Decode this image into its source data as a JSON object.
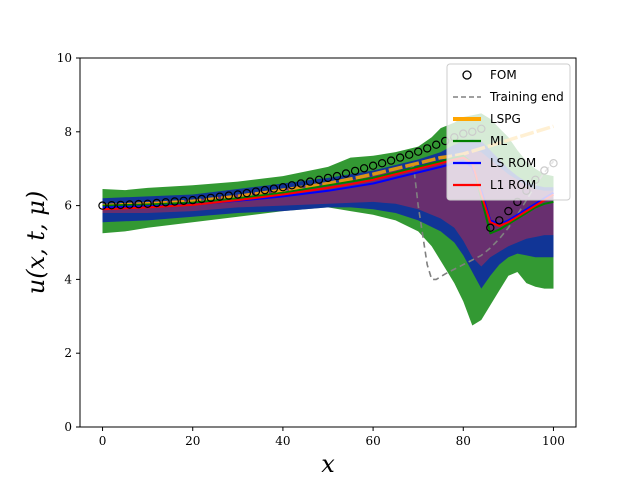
{
  "chart_data": {
    "type": "line",
    "xlabel": "x",
    "ylabel": "u(x, t, μ)",
    "xlim": [
      -5,
      105
    ],
    "ylim": [
      0,
      10
    ],
    "xticks": [
      "0",
      "20",
      "40",
      "60",
      "80",
      "100"
    ],
    "yticks": [
      "0",
      "2",
      "4",
      "6",
      "8",
      "10"
    ],
    "grid": false,
    "legend": {
      "placement": "top-right",
      "entries": [
        {
          "name": "FOM",
          "style": "marker-circle",
          "color": "#000000"
        },
        {
          "name": "Training end",
          "style": "dashed",
          "color": "#808080"
        },
        {
          "name": "LSPG",
          "style": "thick-line",
          "color": "#ffa500"
        },
        {
          "name": "ML",
          "style": "line",
          "color": "#007f00"
        },
        {
          "name": "LS ROM",
          "style": "line",
          "color": "#0000ff"
        },
        {
          "name": "L1 ROM",
          "style": "line",
          "color": "#ff0000"
        }
      ]
    },
    "bands": [
      {
        "series": "ML",
        "color": "#008000",
        "opacity": 0.8,
        "x": [
          0,
          5,
          10,
          20,
          30,
          40,
          50,
          55,
          60,
          65,
          70,
          73,
          75,
          78,
          80,
          82,
          84,
          86,
          88,
          90,
          92,
          94,
          96,
          98,
          100
        ],
        "upper": [
          6.45,
          6.42,
          6.48,
          6.55,
          6.65,
          6.8,
          7.05,
          7.3,
          7.35,
          7.45,
          7.6,
          7.85,
          8.1,
          8.25,
          8.4,
          8.45,
          8.5,
          8.35,
          8.1,
          7.85,
          7.5,
          7.2,
          7.0,
          6.85,
          6.8
        ],
        "lower": [
          5.25,
          5.3,
          5.4,
          5.55,
          5.7,
          5.85,
          5.95,
          5.85,
          5.75,
          5.6,
          5.3,
          4.9,
          4.5,
          3.9,
          3.4,
          2.75,
          2.9,
          3.3,
          3.7,
          4.1,
          4.2,
          3.9,
          3.8,
          3.75,
          3.75
        ]
      },
      {
        "series": "LS ROM",
        "color": "#0000cc",
        "opacity": 0.65,
        "x": [
          0,
          10,
          20,
          30,
          40,
          50,
          55,
          60,
          65,
          70,
          75,
          78,
          80,
          82,
          84,
          86,
          88,
          90,
          92,
          94,
          96,
          98,
          100
        ],
        "upper": [
          6.2,
          6.25,
          6.3,
          6.45,
          6.6,
          6.75,
          6.85,
          6.95,
          7.1,
          7.25,
          7.45,
          7.65,
          7.75,
          7.8,
          7.75,
          7.5,
          7.25,
          7.0,
          6.8,
          6.65,
          6.55,
          6.5,
          6.5
        ],
        "lower": [
          5.55,
          5.6,
          5.7,
          5.8,
          5.85,
          5.95,
          5.95,
          5.9,
          5.8,
          5.6,
          5.3,
          5.0,
          4.65,
          4.2,
          3.75,
          4.1,
          4.4,
          4.6,
          4.7,
          4.65,
          4.6,
          4.6,
          4.6
        ]
      },
      {
        "series": "L1 ROM",
        "color": "#b02a50",
        "opacity": 0.55,
        "x": [
          0,
          10,
          20,
          30,
          40,
          50,
          60,
          65,
          70,
          75,
          78,
          80,
          82,
          84,
          86,
          88,
          90,
          92,
          94,
          96,
          98,
          100
        ],
        "upper": [
          6.05,
          6.1,
          6.15,
          6.3,
          6.45,
          6.6,
          6.8,
          6.95,
          7.05,
          7.2,
          7.35,
          7.45,
          7.5,
          7.45,
          7.25,
          7.05,
          6.85,
          6.7,
          6.55,
          6.45,
          6.4,
          6.4
        ],
        "lower": [
          5.8,
          5.8,
          5.85,
          5.95,
          6.0,
          6.05,
          6.1,
          6.05,
          5.9,
          5.65,
          5.4,
          5.05,
          4.6,
          4.35,
          4.6,
          4.75,
          4.9,
          5.0,
          5.1,
          5.15,
          5.2,
          5.2
        ]
      }
    ],
    "series": [
      {
        "name": "FOM",
        "color": "#000000",
        "style": "circle-markers",
        "x": [
          0,
          2,
          4,
          6,
          8,
          10,
          12,
          14,
          16,
          18,
          20,
          22,
          24,
          26,
          28,
          30,
          32,
          34,
          36,
          38,
          40,
          42,
          44,
          46,
          48,
          50,
          52,
          54,
          56,
          58,
          60,
          62,
          64,
          66,
          68,
          70,
          72,
          74,
          76,
          78,
          80,
          82,
          84,
          86,
          88,
          90,
          92,
          94,
          96,
          98,
          100
        ],
        "y": [
          6.0,
          6.01,
          6.02,
          6.03,
          6.04,
          6.05,
          6.07,
          6.09,
          6.11,
          6.13,
          6.15,
          6.18,
          6.21,
          6.24,
          6.27,
          6.3,
          6.34,
          6.38,
          6.42,
          6.46,
          6.5,
          6.55,
          6.6,
          6.65,
          6.7,
          6.75,
          6.8,
          6.87,
          6.94,
          7.01,
          7.08,
          7.15,
          7.22,
          7.3,
          7.38,
          7.46,
          7.55,
          7.65,
          7.75,
          7.85,
          7.95,
          8.0,
          8.08,
          5.4,
          5.6,
          5.85,
          6.1,
          6.4,
          6.7,
          6.95,
          7.15
        ]
      },
      {
        "name": "Training end",
        "color": "#808080",
        "style": "dashed",
        "x": [
          0,
          10,
          20,
          30,
          40,
          50,
          55,
          60,
          62,
          65,
          67,
          68,
          69,
          70,
          71,
          72,
          73,
          74,
          76,
          80,
          84,
          86,
          88,
          90,
          92,
          94,
          96,
          98,
          100
        ],
        "y": [
          6.0,
          6.03,
          6.1,
          6.22,
          6.38,
          6.55,
          6.65,
          6.75,
          6.8,
          6.88,
          6.95,
          7.0,
          7.05,
          6.0,
          5.2,
          4.4,
          4.0,
          4.0,
          4.15,
          4.4,
          4.65,
          4.85,
          5.1,
          5.4,
          5.75,
          6.15,
          6.55,
          6.9,
          7.2
        ]
      },
      {
        "name": "LSPG",
        "color": "#ffa500",
        "style": "thick",
        "x": [
          0,
          10,
          20,
          30,
          40,
          50,
          55,
          60,
          65,
          70,
          75,
          78,
          80,
          84,
          88,
          92,
          96,
          100
        ],
        "y": [
          6.0,
          6.05,
          6.12,
          6.25,
          6.42,
          6.6,
          6.72,
          6.85,
          7.0,
          7.15,
          7.3,
          7.35,
          7.4,
          7.55,
          7.7,
          7.85,
          8.0,
          8.15
        ]
      },
      {
        "name": "ML",
        "color": "#007f00",
        "style": "line",
        "x": [
          0,
          10,
          20,
          30,
          40,
          50,
          55,
          60,
          65,
          70,
          75,
          78,
          80,
          82,
          84,
          86,
          88,
          90,
          92,
          94,
          96,
          98,
          100
        ],
        "y": [
          6.0,
          6.03,
          6.08,
          6.2,
          6.35,
          6.55,
          6.65,
          6.75,
          6.9,
          7.05,
          7.2,
          7.3,
          7.35,
          7.15,
          6.2,
          5.25,
          5.35,
          5.5,
          5.65,
          5.8,
          5.95,
          6.05,
          6.1
        ]
      },
      {
        "name": "LS ROM",
        "color": "#0000ff",
        "style": "line",
        "x": [
          0,
          10,
          20,
          30,
          40,
          50,
          55,
          60,
          65,
          70,
          75,
          78,
          80,
          82,
          84,
          86,
          88,
          90,
          92,
          94,
          96,
          98,
          100
        ],
        "y": [
          5.95,
          5.98,
          6.03,
          6.13,
          6.25,
          6.4,
          6.5,
          6.6,
          6.75,
          6.9,
          7.05,
          7.15,
          7.2,
          7.05,
          6.4,
          5.6,
          5.5,
          5.6,
          5.75,
          5.9,
          6.05,
          6.2,
          6.35
        ]
      },
      {
        "name": "L1 ROM",
        "color": "#ff0000",
        "style": "line",
        "x": [
          0,
          10,
          20,
          30,
          40,
          50,
          55,
          60,
          65,
          70,
          75,
          78,
          80,
          82,
          84,
          86,
          88,
          90,
          92,
          94,
          96,
          98,
          100
        ],
        "y": [
          5.9,
          5.95,
          6.02,
          6.15,
          6.3,
          6.48,
          6.58,
          6.7,
          6.85,
          7.0,
          7.15,
          7.25,
          7.3,
          7.15,
          6.3,
          5.55,
          5.45,
          5.55,
          5.7,
          5.85,
          6.0,
          6.15,
          6.3
        ]
      }
    ]
  }
}
